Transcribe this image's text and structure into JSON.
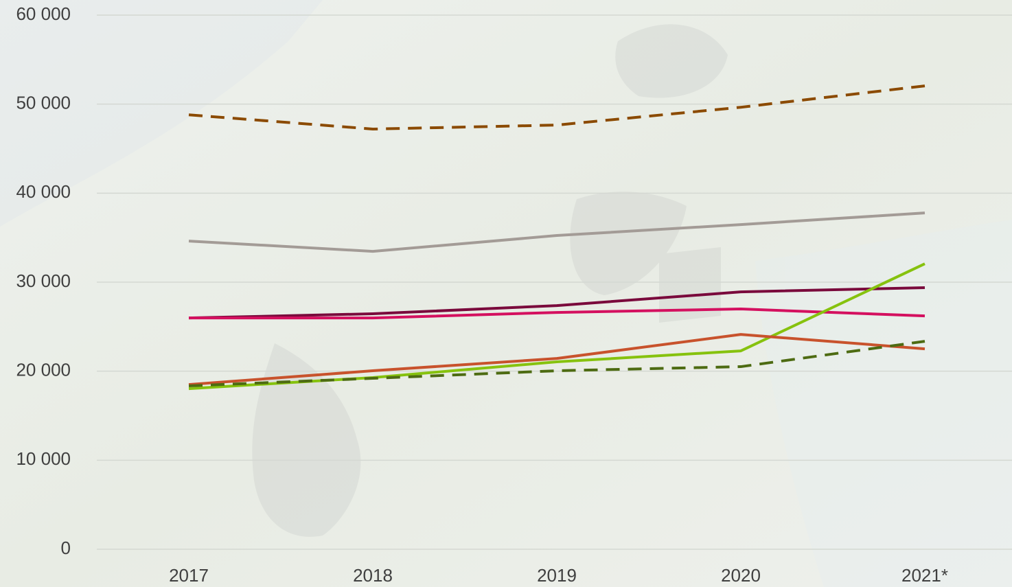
{
  "chart_data": {
    "type": "line",
    "categories": [
      "2017",
      "2018",
      "2019",
      "2020",
      "2021*"
    ],
    "ylim": [
      0,
      60000
    ],
    "yticks": [
      0,
      {
        "value": 10000,
        "label": "10 000"
      },
      {
        "value": 20000,
        "label": "20 000"
      },
      {
        "value": 30000,
        "label": "30 000"
      },
      {
        "value": 40000,
        "label": "40 000"
      },
      {
        "value": 50000,
        "label": "50 000"
      },
      {
        "value": 60000,
        "label": "60 000"
      }
    ],
    "grid": true,
    "series": [
      {
        "color": "#8b4a00",
        "dashed": true,
        "values": [
          48800,
          47200,
          47650,
          49650,
          52050
        ]
      },
      {
        "color": "#a39b96",
        "values": [
          34620,
          33460,
          35240,
          36470,
          37780
        ]
      },
      {
        "color": "#7a0a3c",
        "values": [
          25980,
          26450,
          27370,
          28910,
          29380
        ]
      },
      {
        "color": "#d4105f",
        "values": [
          25980,
          25980,
          26600,
          26990,
          26210
        ]
      },
      {
        "color": "#86c20e",
        "values": [
          18040,
          19280,
          21050,
          22280,
          32070
        ]
      },
      {
        "color": "#c8522c",
        "values": [
          18500,
          20050,
          21430,
          24130,
          22510
        ]
      },
      {
        "color": "#4d6b12",
        "dashed": true,
        "values": [
          18350,
          19200,
          20050,
          20510,
          23360
        ]
      }
    ]
  }
}
